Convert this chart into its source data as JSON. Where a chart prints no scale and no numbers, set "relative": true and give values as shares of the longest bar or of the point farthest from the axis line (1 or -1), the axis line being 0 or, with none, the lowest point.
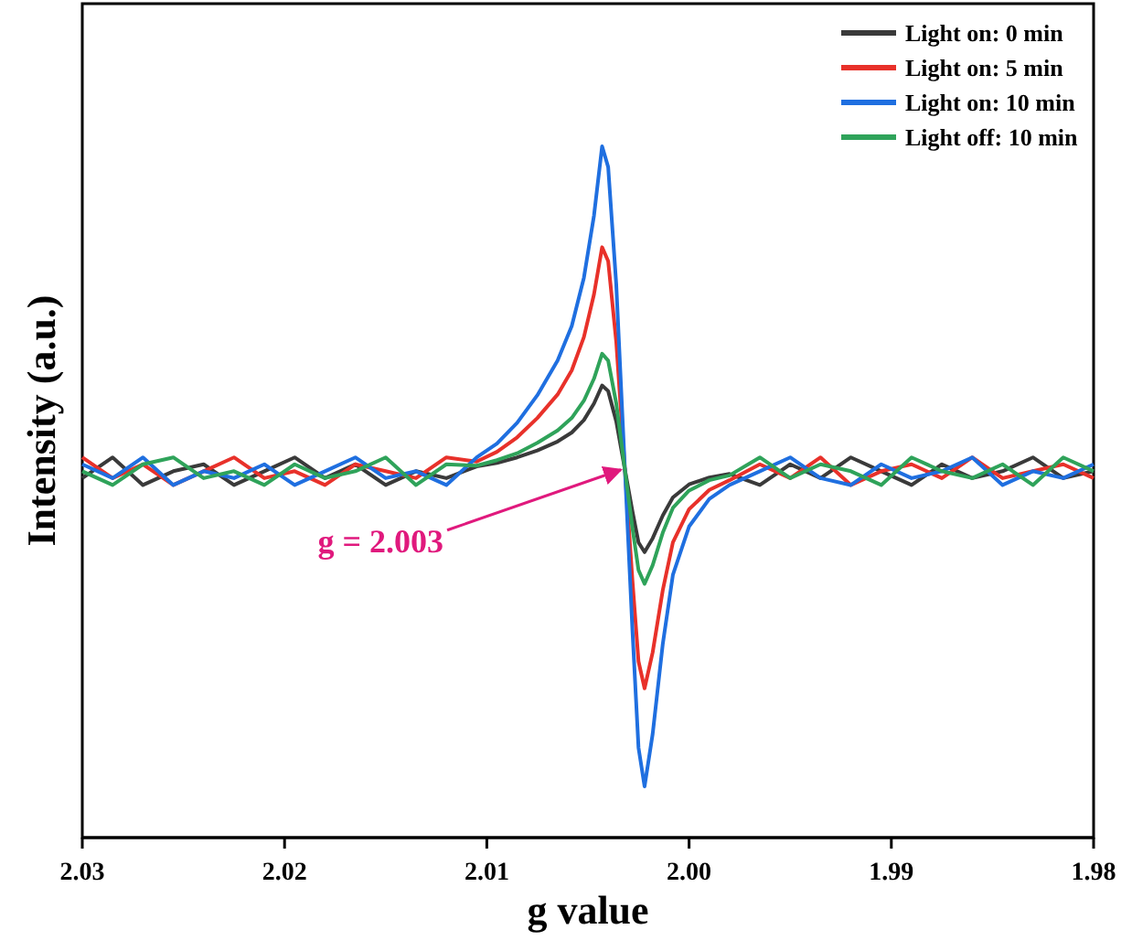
{
  "chart_data": {
    "type": "line",
    "relative": true,
    "xlabel": "g value",
    "ylabel": "Intensity (a.u.)",
    "xlim": [
      2.03,
      1.98
    ],
    "xticks": [
      {
        "value": 2.03,
        "label": "2.03"
      },
      {
        "value": 2.02,
        "label": "2.02"
      },
      {
        "value": 2.01,
        "label": "2.01"
      },
      {
        "value": 2.0,
        "label": "2.00"
      },
      {
        "value": 1.99,
        "label": "1.99"
      },
      {
        "value": 1.98,
        "label": "1.98"
      }
    ],
    "tick_labels": "x",
    "legend": "top right",
    "line_style": "solid",
    "marker": "none",
    "x": [
      2.03,
      2.0285,
      2.027,
      2.0255,
      2.024,
      2.0225,
      2.021,
      2.0195,
      2.018,
      2.0165,
      2.015,
      2.0135,
      2.012,
      2.0105,
      2.0095,
      2.0085,
      2.0075,
      2.0065,
      2.0058,
      2.0052,
      2.0047,
      2.0043,
      2.004,
      2.0036,
      2.0032,
      2.0028,
      2.0025,
      2.0022,
      2.0018,
      2.0013,
      2.0008,
      2.0,
      1.999,
      1.998,
      1.9965,
      1.995,
      1.9935,
      1.992,
      1.9905,
      1.989,
      1.9875,
      1.986,
      1.9845,
      1.983,
      1.9815,
      1.98
    ],
    "series": [
      {
        "name": "Light on: 0 min",
        "color": "#3a3a3a",
        "values": [
          0.52,
          0.55,
          0.51,
          0.53,
          0.54,
          0.51,
          0.53,
          0.55,
          0.52,
          0.54,
          0.51,
          0.53,
          0.52,
          0.537,
          0.542,
          0.55,
          0.56,
          0.573,
          0.586,
          0.604,
          0.628,
          0.654,
          0.646,
          0.602,
          0.537,
          0.472,
          0.427,
          0.413,
          0.433,
          0.466,
          0.492,
          0.511,
          0.521,
          0.526,
          0.51,
          0.54,
          0.52,
          0.55,
          0.53,
          0.51,
          0.54,
          0.52,
          0.53,
          0.55,
          0.52,
          0.53
        ]
      },
      {
        "name": "Light on: 5 min",
        "color": "#e8312a",
        "values": [
          0.55,
          0.52,
          0.54,
          0.51,
          0.53,
          0.55,
          0.52,
          0.53,
          0.51,
          0.54,
          0.53,
          0.52,
          0.55,
          0.544,
          0.558,
          0.579,
          0.607,
          0.641,
          0.676,
          0.724,
          0.786,
          0.854,
          0.834,
          0.717,
          0.544,
          0.372,
          0.255,
          0.216,
          0.268,
          0.358,
          0.427,
          0.475,
          0.503,
          0.517,
          0.54,
          0.52,
          0.55,
          0.51,
          0.53,
          0.54,
          0.52,
          0.55,
          0.52,
          0.53,
          0.54,
          0.52
        ]
      },
      {
        "name": "Light on: 10 min",
        "color": "#1f6fe0",
        "values": [
          0.54,
          0.52,
          0.55,
          0.51,
          0.53,
          0.52,
          0.54,
          0.51,
          0.53,
          0.55,
          0.52,
          0.53,
          0.51,
          0.55,
          0.57,
          0.6,
          0.64,
          0.69,
          0.74,
          0.81,
          0.9,
          1.0,
          0.97,
          0.8,
          0.55,
          0.3,
          0.13,
          0.074,
          0.15,
          0.28,
          0.38,
          0.45,
          0.49,
          0.51,
          0.53,
          0.55,
          0.52,
          0.51,
          0.54,
          0.52,
          0.53,
          0.55,
          0.51,
          0.53,
          0.52,
          0.54
        ]
      },
      {
        "name": "Light off: 10 min",
        "color": "#2fa35a",
        "values": [
          0.53,
          0.51,
          0.54,
          0.55,
          0.52,
          0.53,
          0.51,
          0.54,
          0.52,
          0.53,
          0.55,
          0.51,
          0.54,
          0.538,
          0.546,
          0.556,
          0.571,
          0.589,
          0.607,
          0.632,
          0.664,
          0.7,
          0.69,
          0.628,
          0.538,
          0.448,
          0.387,
          0.367,
          0.394,
          0.441,
          0.477,
          0.502,
          0.517,
          0.524,
          0.55,
          0.52,
          0.54,
          0.53,
          0.51,
          0.55,
          0.53,
          0.52,
          0.54,
          0.51,
          0.55,
          0.53
        ]
      }
    ],
    "annotations": [
      {
        "text": "g = 2.003",
        "x": 2.0031,
        "y": 0.54
      }
    ]
  }
}
